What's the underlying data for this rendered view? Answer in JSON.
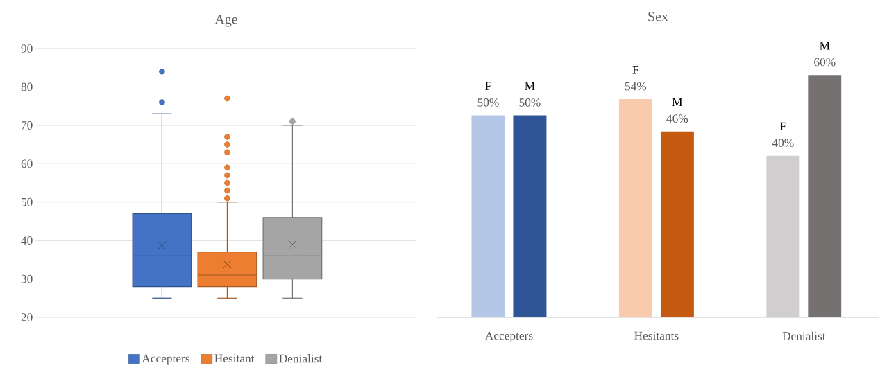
{
  "chart_data": [
    {
      "type": "box",
      "title": "Age",
      "categories": [
        null
      ],
      "series": [
        {
          "name": "Accepters",
          "color": "#4472c4",
          "boxes": [
            {
              "low": 25,
              "q1": 28,
              "median": 36,
              "q3": 47,
              "high": 73,
              "mean": 38.7,
              "outliers": [
                84,
                76
              ]
            }
          ]
        },
        {
          "name": "Hesitant",
          "color": "#ed7d31",
          "boxes": [
            {
              "low": 25,
              "q1": 28,
              "median": 31,
              "q3": 37,
              "high": 50,
              "mean": 33.8,
              "outliers": [
                77,
                67,
                65,
                63,
                59,
                57,
                55,
                53,
                51
              ]
            }
          ]
        },
        {
          "name": "Denialist",
          "color": "#a5a5a5",
          "boxes": [
            {
              "low": 25,
              "q1": 30,
              "median": 36,
              "q3": 46,
              "high": 70,
              "mean": 39,
              "outliers": [
                71
              ]
            }
          ]
        }
      ],
      "ylim": [
        20,
        90
      ],
      "yticks": [
        20,
        30,
        40,
        50,
        60,
        70,
        80,
        90
      ],
      "grid": "y",
      "legend": "bottom"
    },
    {
      "type": "bar",
      "title": "Sex",
      "categories": [
        "Accepters",
        "Hesitants",
        "Denialist"
      ],
      "series": [
        {
          "name": "F",
          "colors": [
            "#b4c7e7",
            "#f8cbad",
            "#d0cece"
          ],
          "values": [
            50,
            54,
            40
          ],
          "value_labels": [
            "50%",
            "54%",
            "40%"
          ]
        },
        {
          "name": "M",
          "colors": [
            "#2f5597",
            "#c55a11",
            "#767171"
          ],
          "values": [
            50,
            46,
            60
          ],
          "value_labels": [
            "50%",
            "46%",
            "60%"
          ]
        }
      ],
      "tick_labels": "x",
      "legend": false
    }
  ]
}
